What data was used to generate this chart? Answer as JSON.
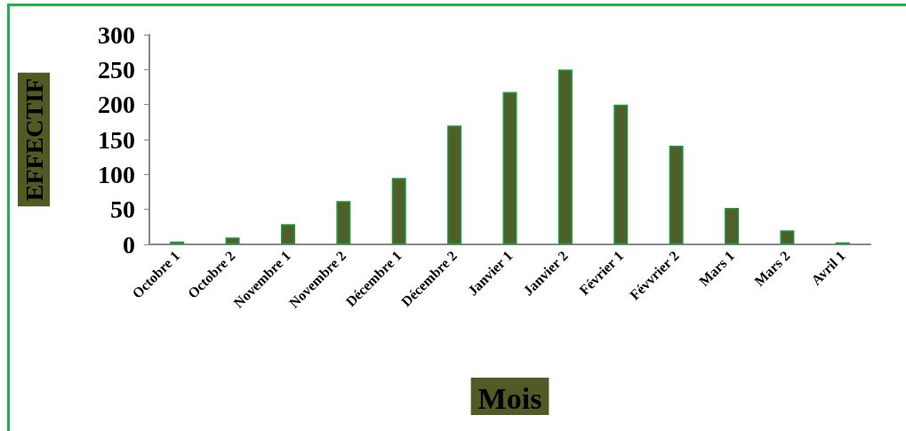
{
  "chart_data": {
    "type": "bar",
    "xlabel": "Mois",
    "ylabel": "EFFECTIF",
    "categories": [
      "Octobre 1",
      "Octobre 2",
      "Novembre 1",
      "Novembre 2",
      "Décembre 1",
      "Décembre 2",
      "Janvier 1",
      "Janvier 2",
      "Février 1",
      "Févvrier 2",
      "Mars 1",
      "Mars 2",
      "Avril 1"
    ],
    "values": [
      4,
      10,
      29,
      62,
      95,
      170,
      218,
      250,
      200,
      141,
      52,
      20,
      3
    ],
    "color": "#4f5f2a",
    "ylim": [
      0,
      300
    ],
    "yticks": [
      0,
      50,
      100,
      150,
      200,
      250,
      300
    ],
    "grid": false
  }
}
